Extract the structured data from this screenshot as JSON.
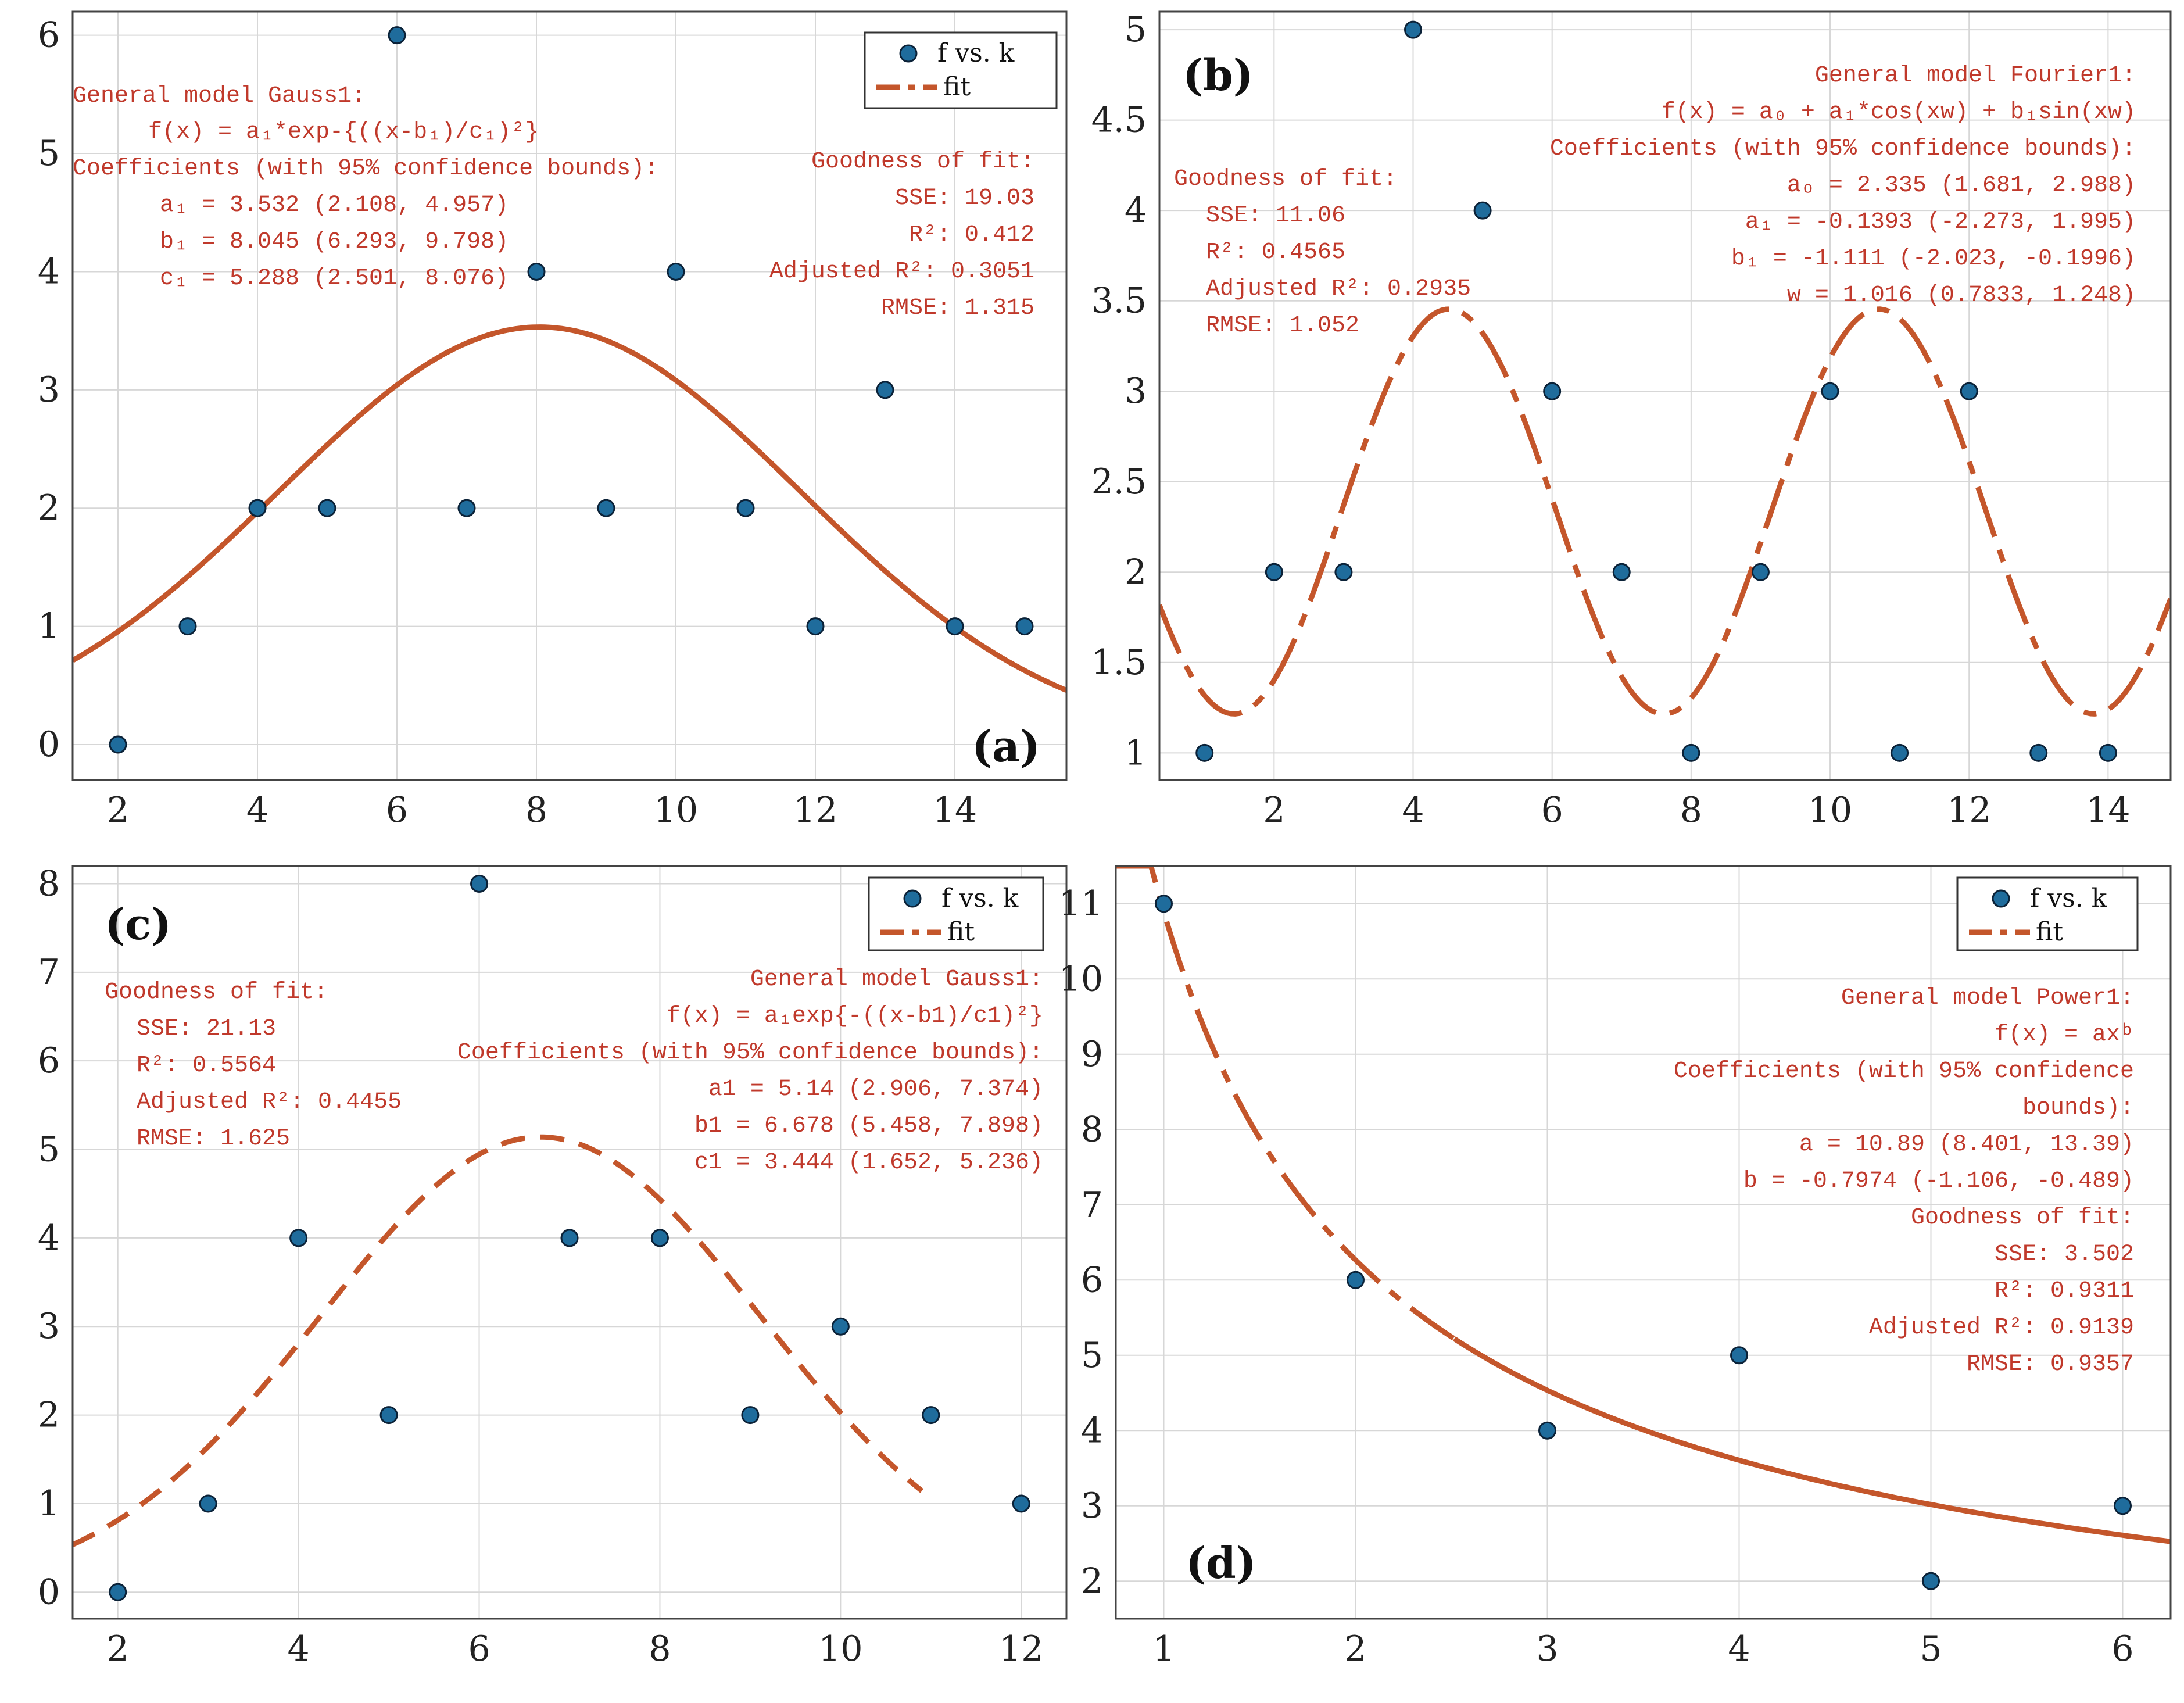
{
  "colors": {
    "points": "#1f6c9c",
    "fit": "#c4562b",
    "annotation": "#c0392b"
  },
  "chart_data": [
    {
      "id": "a",
      "type": "scatter",
      "panel_label": "(a)",
      "xlim": [
        1.35,
        15.6
      ],
      "ylim": [
        -0.3,
        6.2
      ],
      "xticks": [
        2,
        4,
        6,
        8,
        10,
        12,
        14
      ],
      "yticks": [
        0,
        1,
        2,
        3,
        4,
        5,
        6
      ],
      "points": {
        "x": [
          2,
          3,
          4,
          5,
          6,
          7,
          8,
          9,
          10,
          11,
          12,
          13,
          14,
          15
        ],
        "y": [
          0,
          1,
          2,
          2,
          6,
          2,
          4,
          2,
          4,
          2,
          1,
          3,
          1,
          1
        ]
      },
      "fit": {
        "model": "gauss",
        "a": 3.532,
        "b": 8.045,
        "c": 5.288,
        "range": [
          1.35,
          15.6
        ],
        "dash": "solid"
      },
      "legend": {
        "position": "top-right",
        "points_label": "f vs. k",
        "fit_label": "fit"
      },
      "model_text": {
        "title": "General model Gauss1:",
        "formula": "f(x) =  a₁*exp-{((x-b₁)/c₁)²}",
        "coef_header": "Coefficients (with 95% confidence bounds):",
        "coefs": [
          "a₁ = 3.532 (2.108, 4.957)",
          "b₁ = 8.045 (6.293, 9.798)",
          "c₁ =  5.288 (2.501, 8.076)"
        ]
      },
      "gof_text": {
        "title": "Goodness of fit:",
        "lines": [
          "SSE: 19.03",
          "R²: 0.412",
          "Adjusted R²: 0.3051",
          "RMSE: 1.315"
        ]
      }
    },
    {
      "id": "b",
      "type": "scatter",
      "panel_label": "(b)",
      "xlim": [
        0.35,
        14.9
      ],
      "ylim": [
        0.85,
        5.1
      ],
      "xticks": [
        2,
        4,
        6,
        8,
        10,
        12,
        14
      ],
      "yticks": [
        1,
        1.5,
        2,
        2.5,
        3,
        3.5,
        4,
        4.5,
        5
      ],
      "points": {
        "x": [
          1,
          2,
          3,
          4,
          5,
          6,
          7,
          8,
          9,
          10,
          11,
          12,
          13,
          14
        ],
        "y": [
          1,
          2,
          2,
          5,
          4,
          3,
          2,
          1,
          2,
          3,
          1,
          3,
          1,
          1
        ]
      },
      "fit": {
        "model": "fourier1",
        "a0": 2.335,
        "a1": -0.1393,
        "b1": -1.111,
        "w": 1.016,
        "range": [
          0.35,
          14.9
        ],
        "dash": "dashdot"
      },
      "legend": null,
      "model_text": {
        "title": "General model Fourier1:",
        "formula": "f(x) =  a₀ + a₁*cos(xw) + b₁sin(xw)",
        "coef_header": "Coefficients (with 95% confidence bounds):",
        "coefs": [
          "aₒ = 2.335  (1.681, 2.988)",
          "a₁ = -0.1393  (-2.273, 1.995)",
          "b₁ = -1.111  (-2.023, -0.1996)",
          "w = 1.016  (0.7833, 1.248)"
        ]
      },
      "gof_text": {
        "title": "Goodness of fit:",
        "lines": [
          "SSE: 11.06",
          "R²: 0.4565",
          "Adjusted R²: 0.2935",
          "RMSE: 1.052"
        ]
      }
    },
    {
      "id": "c",
      "type": "scatter",
      "panel_label": "(c)",
      "xlim": [
        1.5,
        12.5
      ],
      "ylim": [
        -0.3,
        8.2
      ],
      "xticks": [
        2,
        4,
        6,
        8,
        10,
        12
      ],
      "yticks": [
        0,
        1,
        2,
        3,
        4,
        5,
        6,
        7,
        8
      ],
      "points": {
        "x": [
          2,
          3,
          4,
          5,
          6,
          7,
          8,
          9,
          10,
          11,
          12
        ],
        "y": [
          0,
          1,
          4,
          2,
          8,
          4,
          4,
          2,
          3,
          2,
          1
        ]
      },
      "fit": {
        "model": "gauss",
        "a": 5.14,
        "b": 6.678,
        "c": 3.444,
        "range": [
          1.5,
          10.9
        ],
        "dash": "dashed"
      },
      "legend": {
        "position": "top-right",
        "points_label": "f vs. k",
        "fit_label": "fit"
      },
      "model_text": {
        "title": "General model Gauss1:",
        "formula": "f(x) = a₁exp{-((x-b1)/c1)²}",
        "coef_header": "Coefficients (with 95% confidence bounds):",
        "coefs": [
          "a1 = 5.14 (2.906, 7.374)",
          "b1 = 6.678 (5.458, 7.898)",
          "c1 = 3.444 (1.652, 5.236)"
        ]
      },
      "gof_text": {
        "title": "Goodness of fit:",
        "lines": [
          "SSE: 21.13",
          "R²: 0.5564",
          "Adjusted R²: 0.4455",
          "RMSE: 1.625"
        ]
      }
    },
    {
      "id": "d",
      "type": "scatter",
      "panel_label": "(d)",
      "xlim": [
        0.75,
        6.25
      ],
      "ylim": [
        1.5,
        11.5
      ],
      "xticks": [
        1,
        2,
        3,
        4,
        5,
        6
      ],
      "yticks": [
        2,
        3,
        4,
        5,
        6,
        7,
        8,
        9,
        10,
        11
      ],
      "points": {
        "x": [
          1,
          2,
          3,
          4,
          5,
          6
        ],
        "y": [
          11,
          6,
          4,
          5,
          2,
          3
        ]
      },
      "fit": {
        "model": "power",
        "a": 10.89,
        "b": -0.7974,
        "range": [
          0.75,
          6.25
        ],
        "dash": "dashdot-solid"
      },
      "legend": {
        "position": "top-right",
        "points_label": "f vs. k",
        "fit_label": "fit"
      },
      "model_text": {
        "title": "General model Power1:",
        "formula": "f(x) = axᵇ",
        "coef_header": "Coefficients (with 95% confidence",
        "coef_header2": "bounds):",
        "coefs": [
          "a = 10.89  (8.401, 13.39)",
          "b = -0.7974  (-1.106, -0.489)"
        ]
      },
      "gof_text": {
        "title": "Goodness of fit:",
        "lines": [
          "SSE: 3.502",
          "R²: 0.9311",
          "Adjusted R²: 0.9139",
          "RMSE: 0.9357"
        ]
      }
    }
  ]
}
